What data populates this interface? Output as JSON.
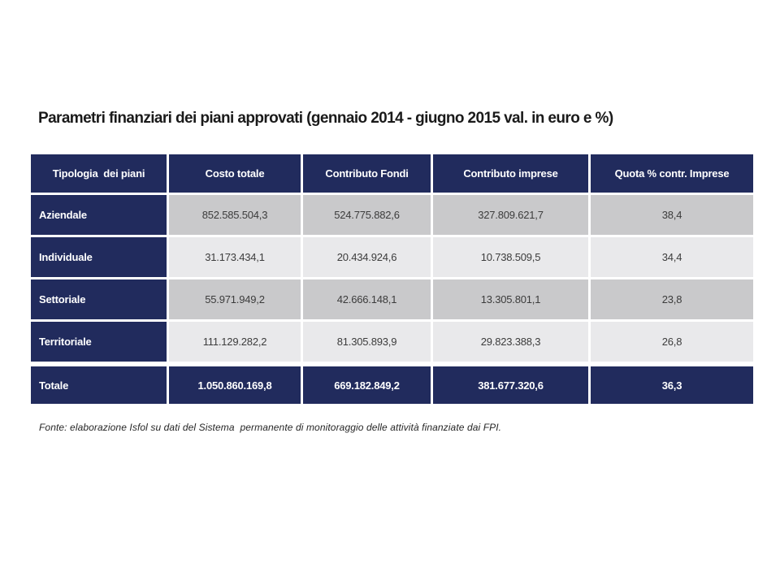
{
  "title": "Parametri finanziari dei piani approvati (gennaio 2014 - giugno 2015 val. in euro e %)",
  "table": {
    "columns": [
      "Tipologia  dei piani",
      "Costo totale",
      "Contributo Fondi",
      "Contributo imprese",
      "Quota % contr. Imprese"
    ],
    "rows": [
      {
        "label": "Aziendale",
        "values": [
          "852.585.504,3",
          "524.775.882,6",
          "327.809.621,7",
          "38,4"
        ]
      },
      {
        "label": "Individuale",
        "values": [
          "31.173.434,1",
          "20.434.924,6",
          "10.738.509,5",
          "34,4"
        ]
      },
      {
        "label": "Settoriale",
        "values": [
          "55.971.949,2",
          "42.666.148,1",
          "13.305.801,1",
          "23,8"
        ]
      },
      {
        "label": "Territoriale",
        "values": [
          "111.129.282,2",
          "81.305.893,9",
          "29.823.388,3",
          "26,8"
        ]
      }
    ],
    "total_row": {
      "label": "Totale",
      "values": [
        "1.050.860.169,8",
        "669.182.849,2",
        "381.677.320,6",
        "36,3"
      ]
    }
  },
  "footer": "Fonte: elaborazione Isfol su dati del Sistema  permanente di monitoraggio delle attività finanziate dai FPI.",
  "colors": {
    "navy": "#212b5d",
    "row_shade_dark": "#c9c9cb",
    "row_shade_light": "#e9e9eb",
    "background": "#ffffff"
  }
}
